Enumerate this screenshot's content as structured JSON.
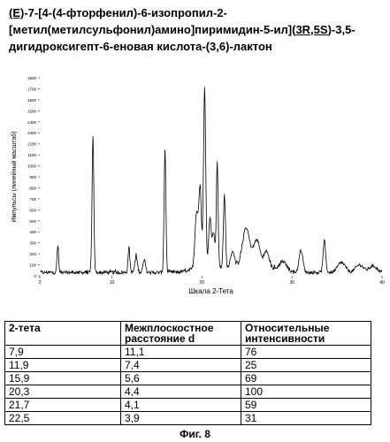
{
  "document": {
    "title_lines": [
      [
        {
          "text": "(E)",
          "underline": true
        },
        {
          "text": "-7-[4-(4-фторфенил)-6-изопропил-2-",
          "underline": false
        }
      ],
      [
        {
          "text": "[метил(метилсульфонил)амино]пиримидин-5-ил](",
          "underline": false
        },
        {
          "text": "3R,5S",
          "underline": true
        },
        {
          "text": ")-3,5-",
          "underline": false
        }
      ],
      [
        {
          "text": "дигидроксигепт-6-еновая кислота-(3,6)-лактон",
          "underline": false
        }
      ]
    ],
    "caption": "Фиг. 8"
  },
  "chart_data": {
    "type": "line",
    "title": "",
    "xlabel": "Шкала 2-Тета",
    "ylabel": "Импульсы (линейный масштаб)",
    "xlim": [
      2,
      40
    ],
    "ylim": [
      0,
      1800
    ],
    "x_ticks": [
      2,
      10,
      20,
      30,
      40
    ],
    "y_ticks": [
      0,
      100,
      200,
      300,
      400,
      500,
      600,
      700,
      800,
      900,
      1000,
      1100,
      1200,
      1300,
      1400,
      1500,
      1600,
      1700,
      1800
    ],
    "baseline": 30,
    "peaks": [
      {
        "x": 4.0,
        "y": 250,
        "w": 0.12
      },
      {
        "x": 7.9,
        "y": 1230,
        "w": 0.14
      },
      {
        "x": 11.9,
        "y": 230,
        "w": 0.14
      },
      {
        "x": 12.7,
        "y": 140,
        "w": 0.2
      },
      {
        "x": 13.6,
        "y": 110,
        "w": 0.2
      },
      {
        "x": 15.9,
        "y": 1120,
        "w": 0.14
      },
      {
        "x": 19.4,
        "y": 500,
        "w": 0.25
      },
      {
        "x": 19.8,
        "y": 700,
        "w": 0.2
      },
      {
        "x": 20.3,
        "y": 1620,
        "w": 0.17
      },
      {
        "x": 20.9,
        "y": 450,
        "w": 0.2
      },
      {
        "x": 21.3,
        "y": 300,
        "w": 0.2
      },
      {
        "x": 21.7,
        "y": 950,
        "w": 0.14
      },
      {
        "x": 22.5,
        "y": 660,
        "w": 0.16
      },
      {
        "x": 23.4,
        "y": 150,
        "w": 0.3
      },
      {
        "x": 24.9,
        "y": 330,
        "w": 0.55
      },
      {
        "x": 26.1,
        "y": 220,
        "w": 0.5
      },
      {
        "x": 27.2,
        "y": 150,
        "w": 0.4
      },
      {
        "x": 29.0,
        "y": 90,
        "w": 0.6
      },
      {
        "x": 31.0,
        "y": 200,
        "w": 0.3
      },
      {
        "x": 33.6,
        "y": 280,
        "w": 0.2
      },
      {
        "x": 35.5,
        "y": 90,
        "w": 0.6
      },
      {
        "x": 37.5,
        "y": 70,
        "w": 0.6
      },
      {
        "x": 39.0,
        "y": 60,
        "w": 0.6
      }
    ],
    "humps": [
      {
        "x": 25.5,
        "y": 80,
        "w": 2.4
      },
      {
        "x": 20.6,
        "y": 60,
        "w": 2.0
      }
    ]
  },
  "table": {
    "headers": [
      "2-тета",
      "Межплоскостное расстояние d",
      "Относительные интенсивности"
    ],
    "rows": [
      [
        "7,9",
        "11,1",
        "76"
      ],
      [
        "11,9",
        "7,4",
        "25"
      ],
      [
        "15,9",
        "5,6",
        "69"
      ],
      [
        "20,3",
        "4,4",
        "100"
      ],
      [
        "21,7",
        "4,1",
        "59"
      ],
      [
        "22,5",
        "3,9",
        "31"
      ]
    ]
  }
}
